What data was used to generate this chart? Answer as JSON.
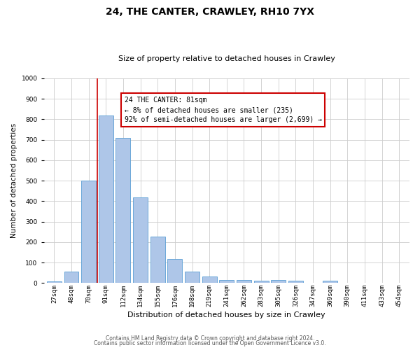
{
  "title1": "24, THE CANTER, CRAWLEY, RH10 7YX",
  "title2": "Size of property relative to detached houses in Crawley",
  "xlabel": "Distribution of detached houses by size in Crawley",
  "ylabel": "Number of detached properties",
  "bin_labels": [
    "27sqm",
    "48sqm",
    "70sqm",
    "91sqm",
    "112sqm",
    "134sqm",
    "155sqm",
    "176sqm",
    "198sqm",
    "219sqm",
    "241sqm",
    "262sqm",
    "283sqm",
    "305sqm",
    "326sqm",
    "347sqm",
    "369sqm",
    "390sqm",
    "411sqm",
    "433sqm",
    "454sqm"
  ],
  "bar_heights": [
    8,
    57,
    500,
    820,
    710,
    420,
    228,
    118,
    55,
    32,
    15,
    14,
    12,
    14,
    10,
    0,
    10,
    0,
    0,
    0,
    0
  ],
  "bar_color": "#aec6e8",
  "bar_edge_color": "#5a9fd4",
  "vline_color": "#cc0000",
  "annotation_text": "24 THE CANTER: 81sqm\n← 8% of detached houses are smaller (235)\n92% of semi-detached houses are larger (2,699) →",
  "annotation_box_color": "#cc0000",
  "ylim": [
    0,
    1000
  ],
  "yticks": [
    0,
    100,
    200,
    300,
    400,
    500,
    600,
    700,
    800,
    900,
    1000
  ],
  "footer1": "Contains HM Land Registry data © Crown copyright and database right 2024.",
  "footer2": "Contains public sector information licensed under the Open Government Licence v3.0.",
  "bg_color": "#ffffff",
  "grid_color": "#cccccc",
  "title1_fontsize": 10,
  "title2_fontsize": 8,
  "xlabel_fontsize": 8,
  "ylabel_fontsize": 7.5,
  "tick_fontsize": 6.5,
  "footer_fontsize": 5.5
}
